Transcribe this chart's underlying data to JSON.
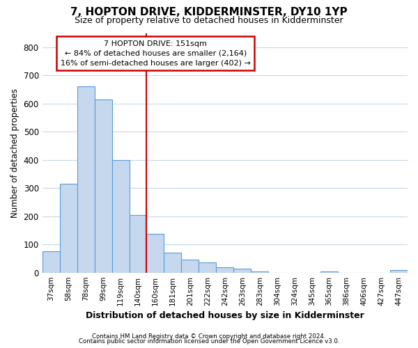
{
  "title": "7, HOPTON DRIVE, KIDDERMINSTER, DY10 1YP",
  "subtitle": "Size of property relative to detached houses in Kidderminster",
  "xlabel": "Distribution of detached houses by size in Kidderminster",
  "ylabel": "Number of detached properties",
  "categories": [
    "37sqm",
    "58sqm",
    "78sqm",
    "99sqm",
    "119sqm",
    "140sqm",
    "160sqm",
    "181sqm",
    "201sqm",
    "222sqm",
    "242sqm",
    "263sqm",
    "283sqm",
    "304sqm",
    "324sqm",
    "345sqm",
    "365sqm",
    "386sqm",
    "406sqm",
    "427sqm",
    "447sqm"
  ],
  "values": [
    75,
    315,
    660,
    615,
    400,
    205,
    138,
    70,
    47,
    36,
    20,
    15,
    5,
    0,
    0,
    0,
    5,
    0,
    0,
    0,
    8
  ],
  "bar_color": "#c5d8ed",
  "bar_edge_color": "#5b9bd5",
  "plot_bg_color": "#ffffff",
  "fig_bg_color": "#ffffff",
  "grid_color": "#c8d8e8",
  "annotation_text": "7 HOPTON DRIVE: 151sqm\n← 84% of detached houses are smaller (2,164)\n16% of semi-detached houses are larger (402) →",
  "annotation_box_color": "#ffffff",
  "annotation_box_edge_color": "#cc0000",
  "vline_x_index": 5.5,
  "vline_color": "#cc0000",
  "ylim": [
    0,
    850
  ],
  "yticks": [
    0,
    100,
    200,
    300,
    400,
    500,
    600,
    700,
    800
  ],
  "footnote1": "Contains HM Land Registry data © Crown copyright and database right 2024.",
  "footnote2": "Contains public sector information licensed under the Open Government Licence v3.0."
}
